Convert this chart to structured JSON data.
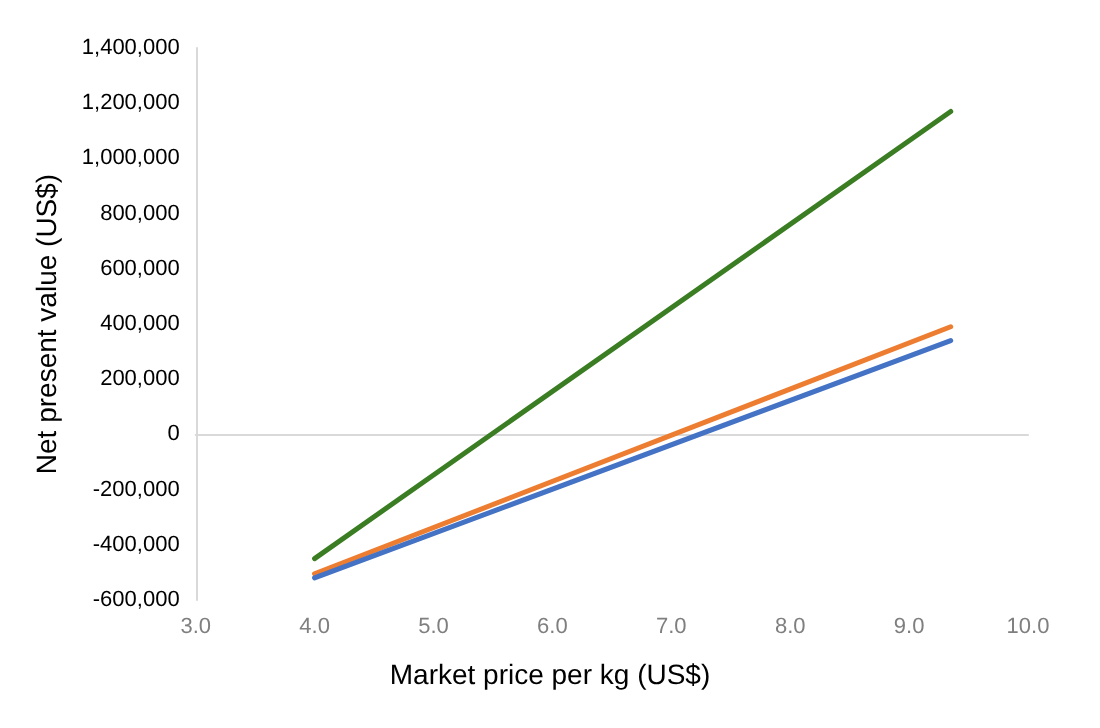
{
  "chart_data": {
    "type": "line",
    "xlabel": "Market price per kg (US$)",
    "ylabel": "Net present value (US$)",
    "xlim": [
      3,
      10
    ],
    "xticks": [
      {
        "value": 3,
        "label": "3.0"
      },
      {
        "value": 4,
        "label": "4.0"
      },
      {
        "value": 5,
        "label": "5.0"
      },
      {
        "value": 6,
        "label": "6.0"
      },
      {
        "value": 7,
        "label": "7.0"
      },
      {
        "value": 8,
        "label": "8.0"
      },
      {
        "value": 9,
        "label": "9.0"
      },
      {
        "value": 10,
        "label": "10.0"
      }
    ],
    "ylim": [
      -600000,
      1400000
    ],
    "yticks": [
      {
        "value": -600000,
        "label": "-600,000"
      },
      {
        "value": -400000,
        "label": "-400,000"
      },
      {
        "value": -200000,
        "label": "-200,000"
      },
      {
        "value": 0,
        "label": "0"
      },
      {
        "value": 200000,
        "label": "200,000"
      },
      {
        "value": 400000,
        "label": "400,000"
      },
      {
        "value": 600000,
        "label": "600,000"
      },
      {
        "value": 800000,
        "label": "800,000"
      },
      {
        "value": 1000000,
        "label": "1,000,000"
      },
      {
        "value": 1200000,
        "label": "1,200,000"
      },
      {
        "value": 1400000,
        "label": "1,400,000"
      }
    ],
    "x": [
      4,
      9.35
    ],
    "series": [
      {
        "color": "#3a7d22",
        "values": [
          -450000,
          1170000
        ]
      },
      {
        "color": "#ed7d31",
        "values": [
          -505000,
          390000
        ]
      },
      {
        "color": "#4472c4",
        "values": [
          -520000,
          340000
        ]
      }
    ],
    "marker": "none",
    "line_style": "solid"
  }
}
